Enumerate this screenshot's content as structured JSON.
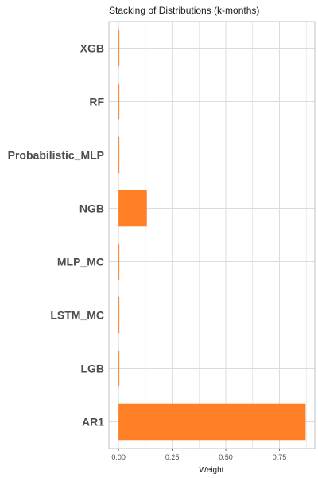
{
  "chart_data": {
    "type": "bar",
    "orientation": "horizontal",
    "title": "Stacking of Distributions (k-months)",
    "xlabel": "Weight",
    "ylabel": "",
    "categories": [
      "XGB",
      "RF",
      "Probabilistic_MLP",
      "NGB",
      "MLP_MC",
      "LSTM_MC",
      "LGB",
      "AR1"
    ],
    "values": [
      0.003,
      0.003,
      0.003,
      0.132,
      0.003,
      0.003,
      0.003,
      0.872
    ],
    "xlim": [
      -0.045,
      0.915
    ],
    "xticks": [
      0.0,
      0.25,
      0.5,
      0.75
    ],
    "xtick_labels": [
      "0.00",
      "0.25",
      "0.50",
      "0.75"
    ],
    "grid": true,
    "bar_color": "#FF7F27",
    "grid_color": "#DCDCDC",
    "panel_border_color": "#B3B3B3"
  }
}
